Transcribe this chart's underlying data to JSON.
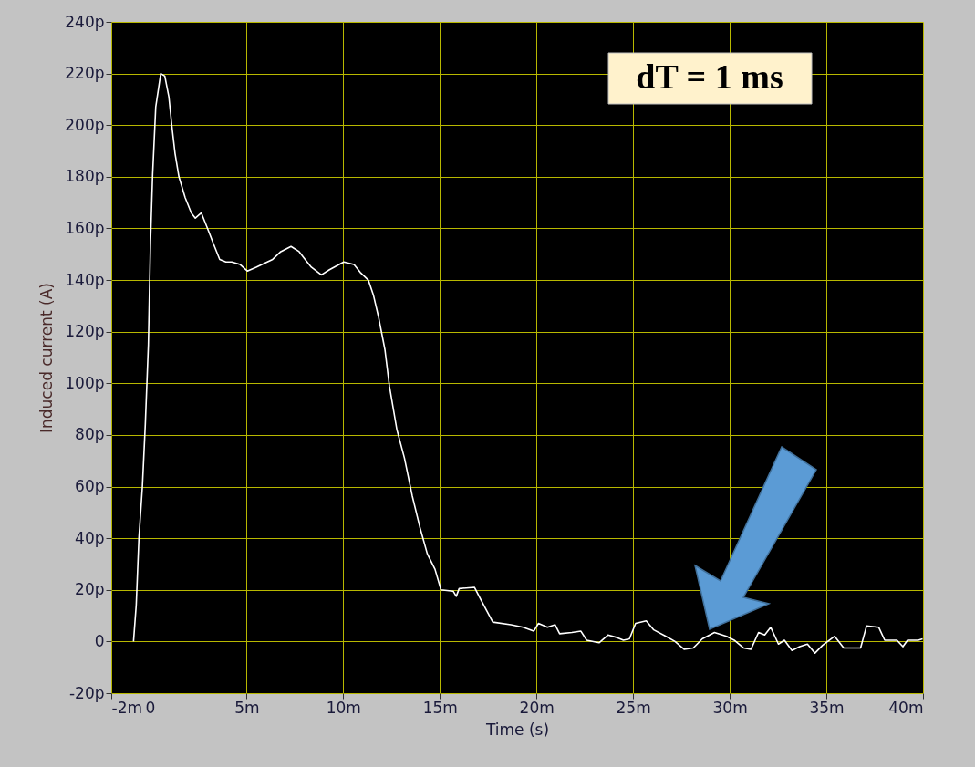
{
  "chart_data": {
    "type": "line",
    "xlabel": "Time (s)",
    "ylabel": "Induced current (A)",
    "annotations": [
      "dT = 1 ms"
    ],
    "xlim": [
      -2,
      40
    ],
    "xticks": [
      {
        "value": -2,
        "label": "-2m"
      },
      0,
      {
        "value": 5,
        "label": "5m"
      },
      {
        "value": 10,
        "label": "10m"
      },
      {
        "value": 15,
        "label": "15m"
      },
      {
        "value": 20,
        "label": "20m"
      },
      {
        "value": 25,
        "label": "25m"
      },
      {
        "value": 30,
        "label": "30m"
      },
      {
        "value": 35,
        "label": "35m"
      },
      {
        "value": 40,
        "label": "40m"
      }
    ],
    "ylim": [
      -20,
      240
    ],
    "yticks": [
      {
        "value": -20,
        "label": "-20p"
      },
      0,
      {
        "value": 20,
        "label": "20p"
      },
      {
        "value": 40,
        "label": "40p"
      },
      {
        "value": 60,
        "label": "60p"
      },
      {
        "value": 80,
        "label": "80p"
      },
      {
        "value": 100,
        "label": "100p"
      },
      {
        "value": 120,
        "label": "120p"
      },
      {
        "value": 140,
        "label": "140p"
      },
      {
        "value": 160,
        "label": "160p"
      },
      {
        "value": 180,
        "label": "180p"
      },
      {
        "value": 200,
        "label": "200p"
      },
      {
        "value": 220,
        "label": "220p"
      },
      {
        "value": 240,
        "label": "240p"
      }
    ],
    "grid": true,
    "marker": "none",
    "line_style": "solid",
    "series": [
      {
        "color": "#ffffff",
        "x": [
          -0.85,
          -0.71,
          -0.57,
          -0.39,
          -0.24,
          -0.08,
          0.03,
          0.14,
          0.3,
          0.56,
          0.77,
          0.98,
          1.13,
          1.3,
          1.5,
          1.82,
          2.14,
          2.35,
          2.66,
          2.98,
          3.29,
          3.61,
          3.93,
          4.24,
          4.67,
          5.04,
          5.5,
          5.92,
          6.35,
          6.77,
          7.3,
          7.72,
          8.03,
          8.35,
          8.87,
          9.29,
          10.03,
          10.56,
          10.88,
          11.3,
          11.57,
          11.82,
          12.16,
          12.39,
          12.78,
          13.17,
          13.57,
          13.96,
          14.35,
          14.75,
          15.06,
          15.69,
          15.85,
          16.0,
          16.79,
          17.1,
          17.74,
          18.68,
          19.31,
          19.86,
          20.1,
          20.57,
          20.96,
          21.2,
          21.83,
          22.3,
          22.6,
          23.24,
          23.7,
          24.18,
          24.5,
          24.81,
          25.13,
          25.68,
          26.07,
          26.7,
          27.17,
          27.64,
          28.11,
          28.58,
          29.21,
          29.84,
          30.23,
          30.71,
          31.1,
          31.49,
          31.81,
          32.12,
          32.52,
          32.83,
          33.22,
          33.62,
          34.02,
          34.41,
          34.8,
          35.43,
          35.9,
          36.77,
          37.08,
          37.71,
          38.02,
          38.65,
          38.96,
          39.2,
          39.75,
          39.98
        ],
        "values": [
          0,
          14,
          40,
          60,
          84,
          115,
          155,
          181,
          207,
          220,
          219,
          211,
          200,
          189,
          180,
          172,
          166,
          164,
          166,
          160,
          154,
          148,
          147,
          147,
          146,
          143.5,
          145,
          146.5,
          148,
          151,
          153,
          151,
          148,
          145,
          142,
          144,
          147,
          146,
          143,
          140,
          134,
          126,
          113,
          99,
          82,
          71,
          56.5,
          44.5,
          34,
          28,
          20,
          19.5,
          17.5,
          20.5,
          21,
          16.5,
          7.5,
          6.5,
          5.5,
          4,
          7,
          5.5,
          6.5,
          3,
          3.5,
          4,
          0.5,
          -0.5,
          2.5,
          1.5,
          0.5,
          1,
          7,
          8,
          4.5,
          2,
          0,
          -3,
          -2.5,
          1,
          3.5,
          2,
          0.5,
          -2.5,
          -3,
          3.5,
          2.5,
          5.5,
          -1,
          0.5,
          -3.5,
          -2,
          -1,
          -4.5,
          -1.5,
          2,
          -2.5,
          -2.5,
          6,
          5.5,
          0.5,
          0.5,
          -2,
          0.5,
          0.5,
          1
        ]
      }
    ]
  }
}
